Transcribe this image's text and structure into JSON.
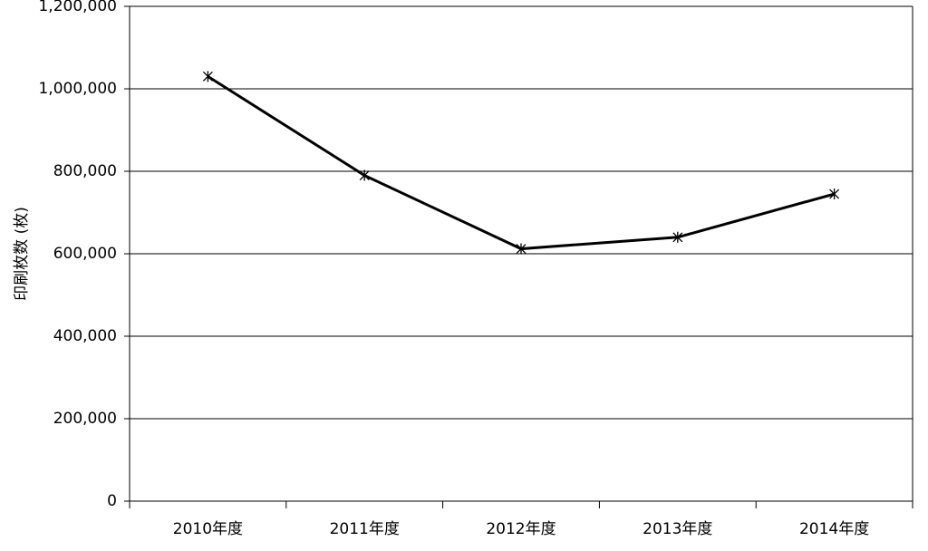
{
  "chart_data": {
    "type": "line",
    "y_label": "印刷枚数 (枚)",
    "categories": [
      "2010年度",
      "2011年度",
      "2012年度",
      "2013年度",
      "2014年度"
    ],
    "values": [
      1030000,
      790000,
      612000,
      640000,
      745000
    ],
    "color": "#000000",
    "ylim": [
      0,
      1200000
    ],
    "yticks": [
      0,
      {
        "value": 200000,
        "label": "200,000"
      },
      {
        "value": 400000,
        "label": "400,000"
      },
      {
        "value": 600000,
        "label": "600,000"
      },
      {
        "value": 800000,
        "label": "800,000"
      },
      {
        "value": 1000000,
        "label": "1,000,000"
      },
      {
        "value": 1200000,
        "label": "1,200,000"
      }
    ],
    "grid": true
  }
}
